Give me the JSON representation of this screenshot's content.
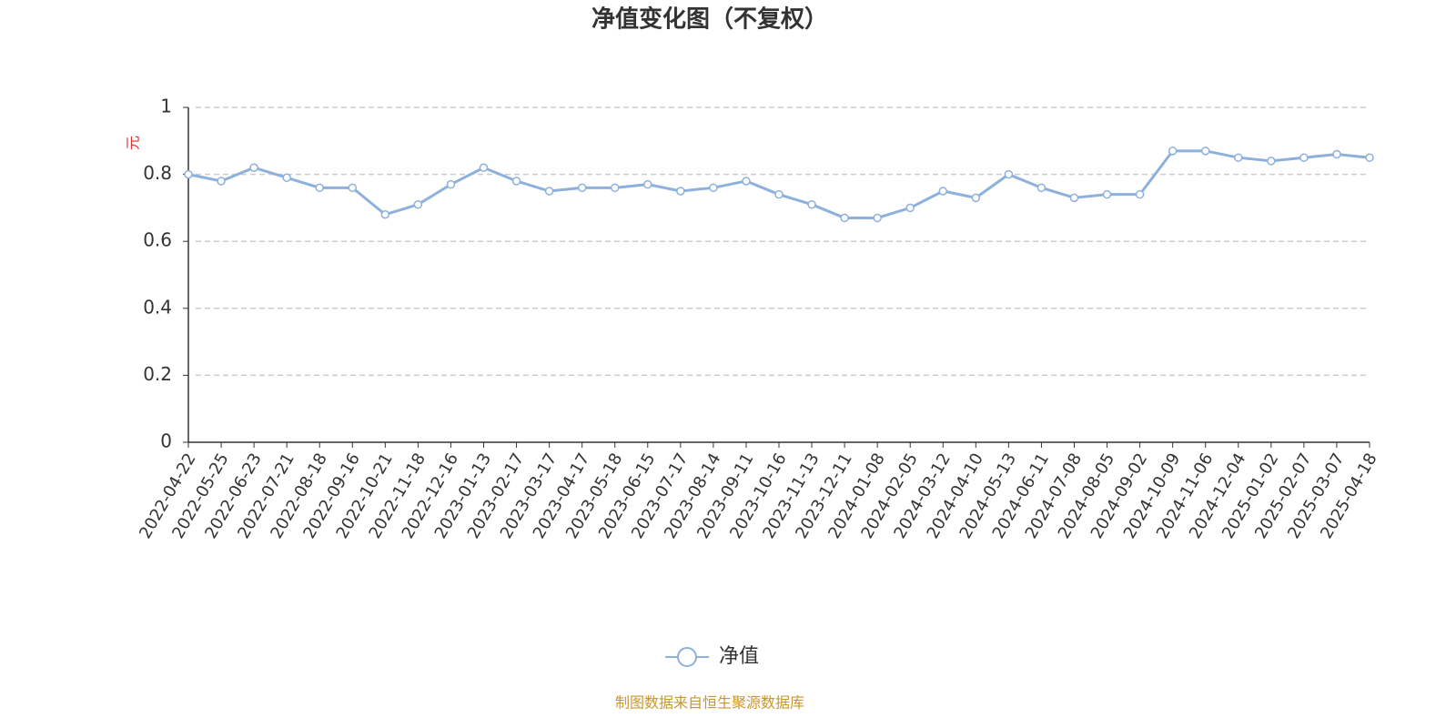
{
  "chart_data": {
    "type": "line",
    "title": "净值变化图（不复权）",
    "y_label": "元",
    "categories": [
      "2022-04-22",
      "2022-05-25",
      "2022-06-23",
      "2022-07-21",
      "2022-08-18",
      "2022-09-16",
      "2022-10-21",
      "2022-11-18",
      "2022-12-16",
      "2023-01-13",
      "2023-02-17",
      "2023-03-17",
      "2023-04-17",
      "2023-05-18",
      "2023-06-15",
      "2023-07-17",
      "2023-08-14",
      "2023-09-11",
      "2023-10-16",
      "2023-11-13",
      "2023-12-11",
      "2024-01-08",
      "2024-02-05",
      "2024-03-12",
      "2024-04-10",
      "2024-05-13",
      "2024-06-11",
      "2024-07-08",
      "2024-08-05",
      "2024-09-02",
      "2024-10-09",
      "2024-11-06",
      "2024-12-04",
      "2025-01-02",
      "2025-02-07",
      "2025-03-07",
      "2025-04-18"
    ],
    "series": [
      {
        "name": "净值",
        "color": "#8eb0dd",
        "values": [
          0.8,
          0.78,
          0.82,
          0.79,
          0.76,
          0.76,
          0.68,
          0.71,
          0.77,
          0.82,
          0.78,
          0.75,
          0.76,
          0.76,
          0.77,
          0.75,
          0.76,
          0.78,
          0.74,
          0.71,
          0.67,
          0.67,
          0.7,
          0.75,
          0.73,
          0.8,
          0.76,
          0.73,
          0.74,
          0.74,
          0.87,
          0.87,
          0.85,
          0.84,
          0.85,
          0.86,
          0.85
        ]
      }
    ],
    "ylim": [
      0,
      1
    ],
    "yticks": [
      0,
      0.2,
      0.4,
      0.6,
      0.8,
      1
    ],
    "grid": true,
    "legend": "bottom",
    "source": "制图数据来自恒生聚源数据库"
  }
}
